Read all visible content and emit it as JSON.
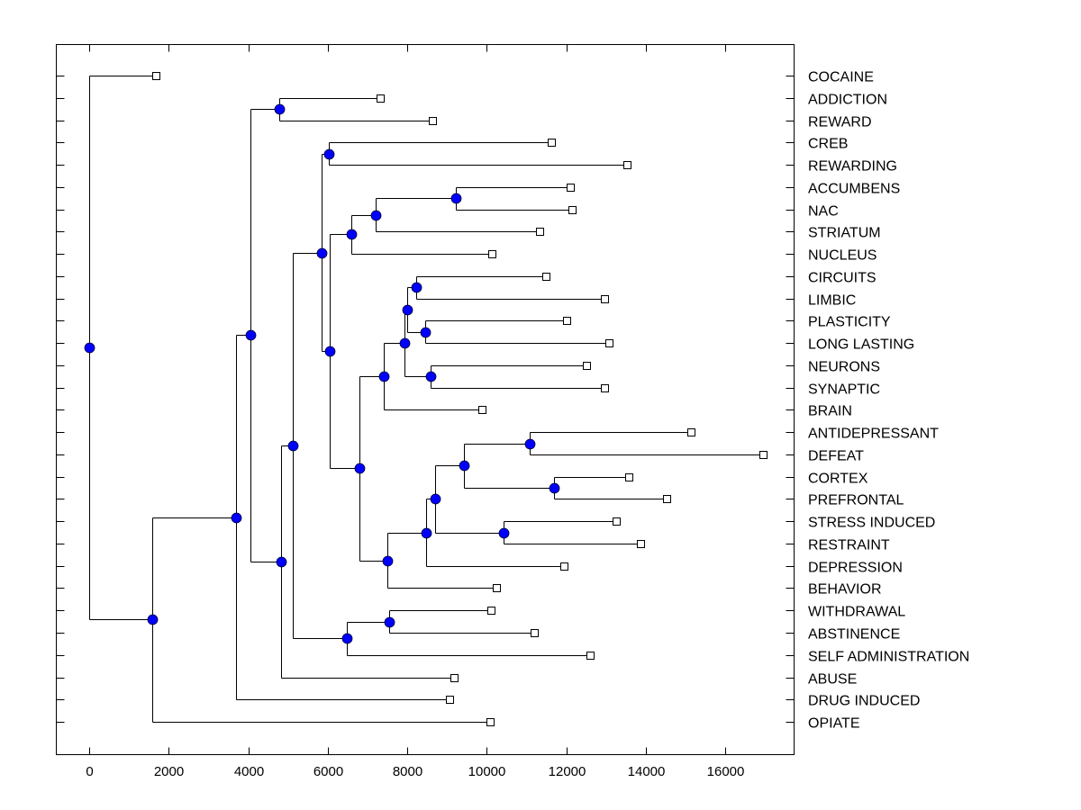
{
  "chart_data": {
    "type": "dendrogram",
    "title": "",
    "xlabel": "",
    "ylabel": "",
    "xlim": [
      -850,
      17750
    ],
    "x_ticks": [
      0,
      2000,
      4000,
      6000,
      8000,
      10000,
      12000,
      14000,
      16000
    ],
    "x_tick_labels": [
      "0",
      "2000",
      "4000",
      "6000",
      "8000",
      "10000",
      "12000",
      "14000",
      "16000"
    ],
    "grid": false,
    "leaf_order": [
      "COCAINE",
      "ADDICTION",
      "REWARD",
      "CREB",
      "REWARDING",
      "ACCUMBENS",
      "NAC",
      "STRIATUM",
      "NUCLEUS",
      "CIRCUITS",
      "LIMBIC",
      "PLASTICITY",
      "LONG LASTING",
      "NEURONS",
      "SYNAPTIC",
      "BRAIN",
      "ANTIDEPRESSANT",
      "DEFEAT",
      "CORTEX",
      "PREFRONTAL",
      "STRESS INDUCED",
      "RESTRAINT",
      "DEPRESSION",
      "BEHAVIOR",
      "WITHDRAWAL",
      "ABSTINENCE",
      "SELF ADMINISTRATION",
      "ABUSE",
      "DRUG INDUCED",
      "OPIATE"
    ],
    "tree": {
      "id": "root",
      "x": 0,
      "children": [
        {
          "leaf": "COCAINE",
          "x": 1590
        },
        {
          "id": "A",
          "x": 1590,
          "children": [
            {
              "id": "B",
              "x": 3690,
              "children": [
                {
                  "id": "C",
                  "x": 4060,
                  "children": [
                    {
                      "id": "D",
                      "x": 4780,
                      "children": [
                        {
                          "leaf": "ADDICTION",
                          "x": 7230
                        },
                        {
                          "leaf": "REWARD",
                          "x": 8540
                        }
                      ]
                    },
                    {
                      "id": "E",
                      "x": 4830,
                      "children": [
                        {
                          "id": "F",
                          "x": 5120,
                          "children": [
                            {
                              "id": "G",
                              "x": 5850,
                              "children": [
                                {
                                  "id": "J",
                                  "x": 6030,
                                  "children": [
                                    {
                                      "leaf": "CREB",
                                      "x": 11540
                                    },
                                    {
                                      "leaf": "REWARDING",
                                      "x": 13440
                                    }
                                  ]
                                },
                                {
                                  "id": "K",
                                  "x": 6050,
                                  "children": [
                                    {
                                      "id": "L",
                                      "x": 6600,
                                      "children": [
                                        {
                                          "id": "N",
                                          "x": 7210,
                                          "children": [
                                            {
                                              "id": "O",
                                              "x": 9220,
                                              "children": [
                                                {
                                                  "leaf": "ACCUMBENS",
                                                  "x": 12010
                                                },
                                                {
                                                  "leaf": "NAC",
                                                  "x": 12060
                                                }
                                              ]
                                            },
                                            {
                                              "leaf": "STRIATUM",
                                              "x": 11240
                                            }
                                          ]
                                        },
                                        {
                                          "leaf": "NUCLEUS",
                                          "x": 10040
                                        }
                                      ]
                                    },
                                    {
                                      "id": "M",
                                      "x": 6800,
                                      "children": [
                                        {
                                          "id": "P",
                                          "x": 7410,
                                          "children": [
                                            {
                                              "id": "R",
                                              "x": 7930,
                                              "children": [
                                                {
                                                  "id": "S",
                                                  "x": 8000,
                                                  "children": [
                                                    {
                                                      "id": "U",
                                                      "x": 8230,
                                                      "children": [
                                                        {
                                                          "leaf": "CIRCUITS",
                                                          "x": 11400
                                                        },
                                                        {
                                                          "leaf": "LIMBIC",
                                                          "x": 12870
                                                        }
                                                      ]
                                                    },
                                                    {
                                                      "id": "V",
                                                      "x": 8450,
                                                      "children": [
                                                        {
                                                          "leaf": "PLASTICITY",
                                                          "x": 11920
                                                        },
                                                        {
                                                          "leaf": "LONG LASTING",
                                                          "x": 12990
                                                        }
                                                      ]
                                                    }
                                                  ]
                                                },
                                                {
                                                  "id": "T",
                                                  "x": 8590,
                                                  "children": [
                                                    {
                                                      "leaf": "NEURONS",
                                                      "x": 12420
                                                    },
                                                    {
                                                      "leaf": "SYNAPTIC",
                                                      "x": 12870
                                                    }
                                                  ]
                                                }
                                              ]
                                            },
                                            {
                                              "leaf": "BRAIN",
                                              "x": 9790
                                            }
                                          ]
                                        },
                                        {
                                          "id": "Q",
                                          "x": 7500,
                                          "children": [
                                            {
                                              "id": "W",
                                              "x": 8480,
                                              "children": [
                                                {
                                                  "id": "X",
                                                  "x": 8700,
                                                  "children": [
                                                    {
                                                      "id": "Y",
                                                      "x": 9430,
                                                      "children": [
                                                        {
                                                          "id": "AA",
                                                          "x": 11080,
                                                          "children": [
                                                            {
                                                              "leaf": "ANTIDEPRESSANT",
                                                              "x": 15050
                                                            },
                                                            {
                                                              "leaf": "DEFEAT",
                                                              "x": 16860
                                                            }
                                                          ]
                                                        },
                                                        {
                                                          "id": "AB",
                                                          "x": 11690,
                                                          "children": [
                                                            {
                                                              "leaf": "CORTEX",
                                                              "x": 13480
                                                            },
                                                            {
                                                              "leaf": "PREFRONTAL",
                                                              "x": 14440
                                                            }
                                                          ]
                                                        }
                                                      ]
                                                    },
                                                    {
                                                      "id": "Z",
                                                      "x": 10430,
                                                      "children": [
                                                        {
                                                          "leaf": "STRESS INDUCED",
                                                          "x": 13170
                                                        },
                                                        {
                                                          "leaf": "RESTRAINT",
                                                          "x": 13780
                                                        }
                                                      ]
                                                    }
                                                  ]
                                                },
                                                {
                                                  "leaf": "DEPRESSION",
                                                  "x": 11850
                                                }
                                              ]
                                            },
                                            {
                                              "leaf": "BEHAVIOR",
                                              "x": 10150
                                            }
                                          ]
                                        }
                                      ]
                                    }
                                  ]
                                }
                              ]
                            },
                            {
                              "id": "H",
                              "x": 6480,
                              "children": [
                                {
                                  "id": "I",
                                  "x": 7550,
                                  "children": [
                                    {
                                      "leaf": "WITHDRAWAL",
                                      "x": 10020
                                    },
                                    {
                                      "leaf": "ABSTINENCE",
                                      "x": 11110
                                    }
                                  ]
                                },
                                {
                                  "leaf": "SELF ADMINISTRATION",
                                  "x": 12510
                                }
                              ]
                            }
                          ]
                        },
                        {
                          "leaf": "ABUSE",
                          "x": 9090
                        }
                      ]
                    }
                  ]
                },
                {
                  "leaf": "DRUG INDUCED",
                  "x": 8980
                }
              ]
            },
            {
              "leaf": "OPIATE",
              "x": 9990
            }
          ]
        }
      ]
    },
    "colors": {
      "node_fill": "#0000ff",
      "leaf_fill": "#ffffff",
      "line": "#000000"
    }
  }
}
